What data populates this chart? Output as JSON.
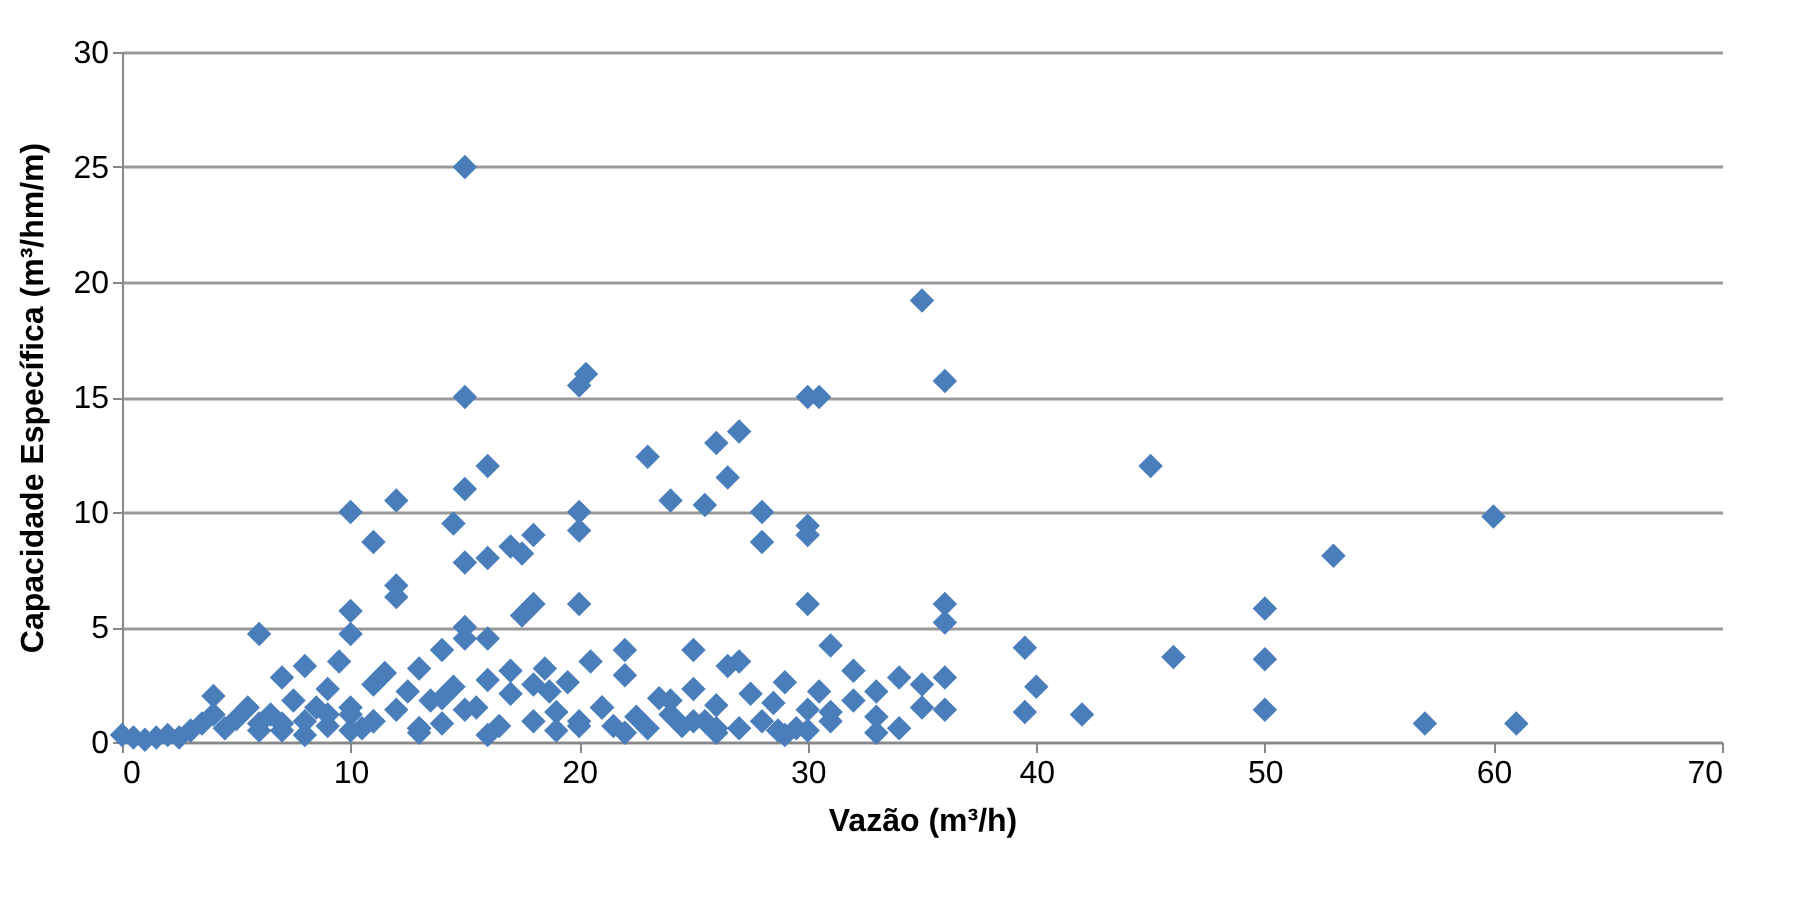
{
  "chart_data": {
    "type": "scatter",
    "xlabel": "Vazão (m³/h)",
    "ylabel": "Capacidade Específica (m³/hm/m)",
    "xlim": [
      0,
      70
    ],
    "ylim": [
      0,
      30
    ],
    "xticks": [
      0,
      10,
      20,
      30,
      40,
      50,
      60,
      70
    ],
    "yticks": [
      0,
      5,
      10,
      15,
      20,
      25,
      30
    ],
    "grid": "y",
    "marker": "diamond",
    "x": [
      15,
      15,
      20,
      20.3,
      35,
      36,
      30,
      30.5,
      16,
      23,
      24,
      25.5,
      26,
      27,
      26.5,
      28,
      28,
      30,
      30,
      45,
      60,
      53,
      10,
      12,
      11,
      15,
      14.5,
      15,
      16,
      17,
      18,
      17.5,
      20,
      20,
      20,
      18,
      17.5,
      12,
      12,
      10,
      6,
      30,
      36,
      36,
      50,
      50,
      46,
      39.5,
      40,
      39.5,
      42,
      50,
      57,
      61,
      15,
      16,
      22,
      25,
      27,
      31,
      34,
      35,
      36,
      36,
      33,
      32,
      0,
      0.5,
      1,
      1.5,
      2,
      2.5,
      3,
      3.5,
      4,
      4,
      4.5,
      5,
      5.5,
      6,
      6.5,
      7,
      7,
      7.5,
      8,
      8,
      8.5,
      9,
      9,
      9.5,
      10,
      10,
      10.5,
      11,
      11,
      11.5,
      12,
      12.5,
      13,
      13,
      13.5,
      14,
      14,
      14.5,
      15,
      15.5,
      16,
      16.5,
      17,
      17,
      18,
      18.5,
      19,
      19.5,
      20,
      20.5,
      21,
      21.5,
      22,
      22.5,
      23,
      23.5,
      24,
      24.5,
      25,
      25.5,
      26,
      26.5,
      27,
      27.5,
      28,
      28.5,
      29,
      29.5,
      30,
      30.5,
      31,
      32,
      33,
      34,
      35,
      7,
      9,
      10,
      13,
      14,
      18,
      21,
      25,
      26,
      29,
      30,
      33,
      8,
      10,
      13,
      16,
      19,
      22,
      26,
      6,
      11,
      15,
      18.7,
      20,
      24,
      28.7,
      31
    ],
    "values": [
      25,
      15,
      15.5,
      16,
      19.2,
      15.7,
      15,
      15,
      12,
      12.4,
      10.5,
      10.3,
      13,
      13.5,
      11.5,
      10,
      8.7,
      9.4,
      9,
      12,
      9.8,
      8.1,
      10,
      10.5,
      8.7,
      11,
      9.5,
      7.8,
      8,
      8.5,
      9,
      8.2,
      10,
      9.2,
      6,
      6,
      5.5,
      6.3,
      6.8,
      5.7,
      4.7,
      6,
      6,
      5.2,
      5.8,
      3.6,
      3.7,
      4.1,
      2.4,
      1.3,
      1.2,
      1.4,
      0.8,
      0.8,
      4.5,
      4.5,
      4,
      4,
      3.5,
      4.2,
      2.8,
      2.5,
      2.8,
      1.4,
      2.2,
      1.8,
      0.3,
      0.2,
      0.1,
      0.2,
      0.3,
      0.2,
      0.5,
      0.8,
      1.2,
      2,
      0.6,
      1,
      1.5,
      0.8,
      1.2,
      2.8,
      0.5,
      1.8,
      3.3,
      0.9,
      1.5,
      2.3,
      0.7,
      3.5,
      4.7,
      1.2,
      0.6,
      2.5,
      0.9,
      3,
      1.4,
      2.2,
      0.6,
      3.2,
      1.8,
      4,
      0.8,
      2.4,
      5,
      1.5,
      2.7,
      0.7,
      3.1,
      2.1,
      0.9,
      3.2,
      1.3,
      2.6,
      0.9,
      3.5,
      1.5,
      0.7,
      2.9,
      1.1,
      0.6,
      1.9,
      1.2,
      0.7,
      2.3,
      0.9,
      1.6,
      3.3,
      0.6,
      2.1,
      0.9,
      1.7,
      2.6,
      0.6,
      1.4,
      2.2,
      0.9,
      3.1,
      1.1,
      0.6,
      1.5,
      0.8,
      1.2,
      1.5,
      0.6,
      1.9,
      2.5,
      1.5,
      0.9,
      0.4,
      0.3,
      0.5,
      0.4,
      0.3,
      0.5,
      0.4,
      0.3,
      0.5,
      0.4,
      0.6,
      0.5,
      0.9,
      1.4,
      2.2,
      0.7,
      1.8,
      0.5,
      1.3
    ],
    "color": "#4a7ebb"
  }
}
